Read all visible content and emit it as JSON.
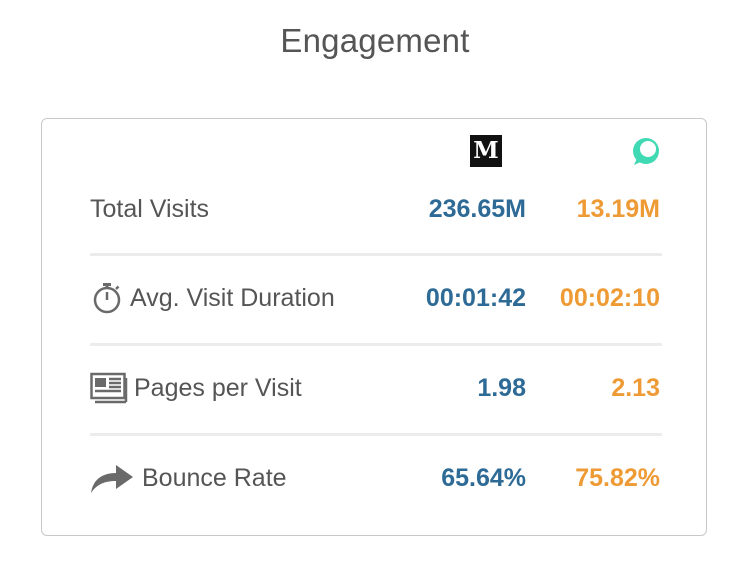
{
  "header": {
    "title": "Engagement"
  },
  "sites": [
    {
      "icon": "medium-logo-icon",
      "glyph": "M",
      "color": "#111111"
    },
    {
      "icon": "chat-bubble-logo-icon",
      "color": "#3fd9b3"
    }
  ],
  "metrics": [
    {
      "label": "Total Visits",
      "icon": "",
      "site_a": "236.65M",
      "site_b": "13.19M"
    },
    {
      "label": "Avg. Visit Duration",
      "icon": "stopwatch-icon",
      "site_a": "00:01:42",
      "site_b": "00:02:10"
    },
    {
      "label": "Pages per Visit",
      "icon": "newspaper-icon",
      "site_a": "1.98",
      "site_b": "2.13"
    },
    {
      "label": "Bounce Rate",
      "icon": "share-arrow-icon",
      "site_a": "65.64%",
      "site_b": "75.82%"
    }
  ],
  "colors": {
    "site_a_value": "#2e6a96",
    "site_b_value": "#ee9a35",
    "label": "#555555",
    "icon": "#6a6a6a"
  }
}
